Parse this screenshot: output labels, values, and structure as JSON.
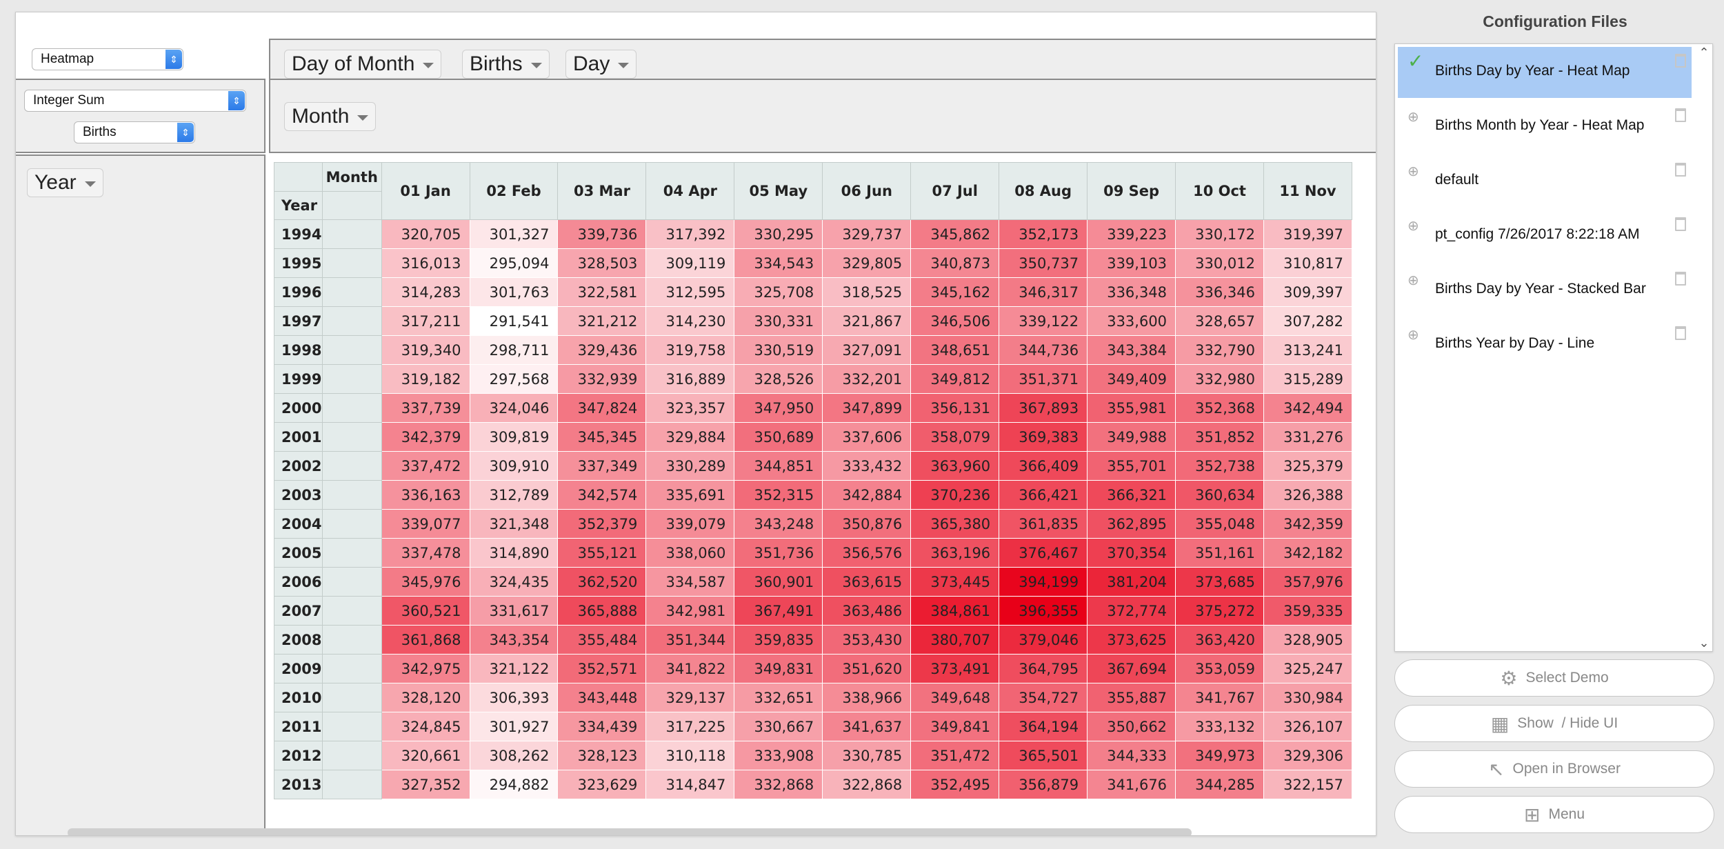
{
  "controls": {
    "renderer_value": "Heatmap",
    "aggregator_value": "Integer Sum",
    "aggregator_field_value": "Births"
  },
  "pivot": {
    "unused_attrs": [
      "Day of Month",
      "Births",
      "Day"
    ],
    "col_attr": "Month",
    "row_attr": "Year",
    "col_header_label": "Month",
    "row_header_label": "Year"
  },
  "table": {
    "columns": [
      "01 Jan",
      "02 Feb",
      "03 Mar",
      "04 Apr",
      "05 May",
      "06 Jun",
      "07 Jul",
      "08 Aug",
      "09 Sep",
      "10 Oct",
      "11 Nov"
    ],
    "rows": [
      {
        "year": "1994",
        "values": [
          "320,705",
          "301,327",
          "339,736",
          "317,392",
          "330,295",
          "329,737",
          "345,862",
          "352,173",
          "339,223",
          "330,172",
          "319,397"
        ]
      },
      {
        "year": "1995",
        "values": [
          "316,013",
          "295,094",
          "328,503",
          "309,119",
          "334,543",
          "329,805",
          "340,873",
          "350,737",
          "339,103",
          "330,012",
          "310,817"
        ]
      },
      {
        "year": "1996",
        "values": [
          "314,283",
          "301,763",
          "322,581",
          "312,595",
          "325,708",
          "318,525",
          "345,162",
          "346,317",
          "336,348",
          "336,346",
          "309,397"
        ]
      },
      {
        "year": "1997",
        "values": [
          "317,211",
          "291,541",
          "321,212",
          "314,230",
          "330,331",
          "321,867",
          "346,506",
          "339,122",
          "333,600",
          "328,657",
          "307,282"
        ]
      },
      {
        "year": "1998",
        "values": [
          "319,340",
          "298,711",
          "329,436",
          "319,758",
          "330,519",
          "327,091",
          "348,651",
          "344,736",
          "343,384",
          "332,790",
          "313,241"
        ]
      },
      {
        "year": "1999",
        "values": [
          "319,182",
          "297,568",
          "332,939",
          "316,889",
          "328,526",
          "332,201",
          "349,812",
          "351,371",
          "349,409",
          "332,980",
          "315,289"
        ]
      },
      {
        "year": "2000",
        "values": [
          "337,739",
          "324,046",
          "347,824",
          "323,357",
          "347,950",
          "347,899",
          "356,131",
          "367,893",
          "355,981",
          "352,368",
          "342,494"
        ]
      },
      {
        "year": "2001",
        "values": [
          "342,379",
          "309,819",
          "345,345",
          "329,884",
          "350,689",
          "337,606",
          "358,079",
          "369,383",
          "349,988",
          "351,852",
          "331,276"
        ]
      },
      {
        "year": "2002",
        "values": [
          "337,472",
          "309,910",
          "337,349",
          "330,289",
          "344,851",
          "333,432",
          "363,960",
          "366,409",
          "355,701",
          "352,738",
          "325,379"
        ]
      },
      {
        "year": "2003",
        "values": [
          "336,163",
          "312,789",
          "342,574",
          "335,691",
          "352,315",
          "342,884",
          "370,236",
          "366,421",
          "366,321",
          "360,634",
          "326,388"
        ]
      },
      {
        "year": "2004",
        "values": [
          "339,077",
          "321,348",
          "352,379",
          "339,079",
          "343,248",
          "350,876",
          "365,380",
          "361,835",
          "362,895",
          "355,048",
          "342,359"
        ]
      },
      {
        "year": "2005",
        "values": [
          "337,478",
          "314,890",
          "355,121",
          "338,060",
          "351,736",
          "356,576",
          "363,196",
          "376,467",
          "370,354",
          "351,161",
          "342,182"
        ]
      },
      {
        "year": "2006",
        "values": [
          "345,976",
          "324,435",
          "362,520",
          "334,587",
          "360,901",
          "363,615",
          "373,445",
          "394,199",
          "381,204",
          "373,685",
          "357,976"
        ]
      },
      {
        "year": "2007",
        "values": [
          "360,521",
          "331,617",
          "365,888",
          "342,981",
          "367,491",
          "363,486",
          "384,861",
          "396,355",
          "372,774",
          "375,272",
          "359,335"
        ]
      },
      {
        "year": "2008",
        "values": [
          "361,868",
          "343,354",
          "355,484",
          "351,344",
          "359,835",
          "353,430",
          "380,707",
          "379,046",
          "373,625",
          "363,420",
          "328,905"
        ]
      },
      {
        "year": "2009",
        "values": [
          "342,975",
          "321,122",
          "352,571",
          "341,822",
          "349,831",
          "351,620",
          "373,491",
          "364,795",
          "367,694",
          "353,059",
          "325,247"
        ]
      },
      {
        "year": "2010",
        "values": [
          "328,120",
          "306,393",
          "343,448",
          "329,137",
          "332,651",
          "338,966",
          "349,648",
          "354,727",
          "355,887",
          "341,767",
          "330,984"
        ]
      },
      {
        "year": "2011",
        "values": [
          "324,845",
          "301,927",
          "334,439",
          "317,225",
          "330,667",
          "341,637",
          "349,841",
          "364,194",
          "350,662",
          "333,132",
          "326,107"
        ]
      },
      {
        "year": "2012",
        "values": [
          "320,661",
          "308,262",
          "328,123",
          "310,118",
          "333,908",
          "330,785",
          "351,472",
          "365,501",
          "344,333",
          "349,973",
          "329,306"
        ]
      },
      {
        "year": "2013",
        "values": [
          "327,352",
          "294,882",
          "323,629",
          "314,847",
          "332,868",
          "322,868",
          "352,495",
          "356,879",
          "341,676",
          "344,285",
          "322,157"
        ]
      }
    ]
  },
  "heat_scale": {
    "min": 291541,
    "max": 396355,
    "low_color": "#ffffff",
    "high_color": "#e80018"
  },
  "config_panel": {
    "title": "Configuration Files",
    "items": [
      {
        "label": "Births Day by Year - Heat Map",
        "mark": "check-icon",
        "active": true
      },
      {
        "label": "Births Month by Year - Heat Map",
        "mark": "plus-circle-icon",
        "active": false
      },
      {
        "label": "default",
        "mark": "plus-circle-icon",
        "active": false
      },
      {
        "label": "pt_config 7/26/2017 8:22:18 AM",
        "mark": "plus-circle-icon",
        "active": false
      },
      {
        "label": "Births Day by Year - Stacked Bar",
        "mark": "plus-circle-icon",
        "active": false
      },
      {
        "label": "Births Year by Day - Line",
        "mark": "plus-circle-icon",
        "active": false
      }
    ]
  },
  "buttons": {
    "select_demo": "Select Demo",
    "show_hide_ui": "Show  / Hide UI",
    "open_in_browser": "Open in Browser",
    "menu": "Menu"
  }
}
